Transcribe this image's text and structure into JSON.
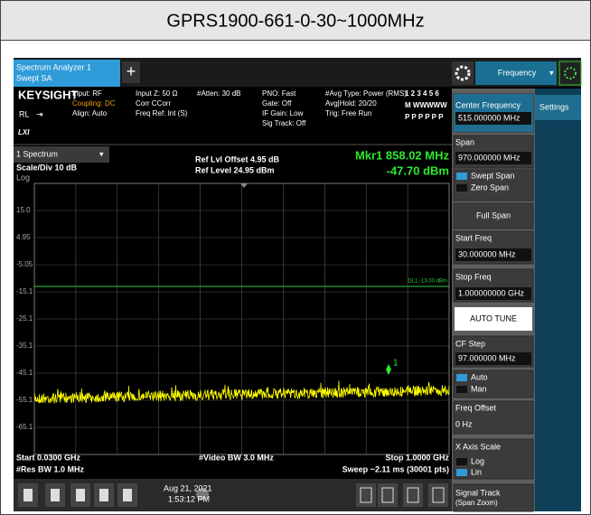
{
  "header": {
    "title": "GPRS1900-661-0-30~1000MHz"
  },
  "toolbar": {
    "tab": [
      "Spectrum Analyzer 1",
      "Swept SA"
    ],
    "menu": "Frequency",
    "side_tab": "Settings"
  },
  "status": {
    "brand": "KEYSIGHT",
    "rl": "RL",
    "lxi": "LXI",
    "columns": [
      [
        "Input: RF",
        "Coupling: DC",
        "Align: Auto"
      ],
      [
        "Input Z: 50 Ω",
        "Corr CCorr",
        "Freq Ref: Int (S)"
      ],
      [
        "#Atten: 30 dB"
      ],
      [
        "PNO: Fast",
        "Gate: Off",
        "IF Gain: Low",
        "Sig Track: Off"
      ],
      [
        "#Avg Type: Power (RMS)",
        "Avg|Hold: 20/20",
        "Trig: Free Run"
      ]
    ],
    "traces": [
      "1 2 3 4 5 6",
      "M WWWWW",
      "P P P P P P"
    ]
  },
  "display": {
    "window": "1 Spectrum",
    "scale": "Scale/Div 10 dB",
    "log": "Log",
    "ref_offset": "Ref Lvl Offset 4.95 dB",
    "ref_level": "Ref Level 24.95 dBm",
    "marker_freq": "Mkr1  858.02 MHz",
    "marker_level": "-47.70 dBm",
    "marker_id": "1",
    "y_labels": [
      "15.0",
      "4.95",
      "-5.05",
      "-15.1",
      "-25.1",
      "-35.1",
      "-45.1",
      "-55.1",
      "-65.1"
    ],
    "display_line": "DL1 -13.00 dBm",
    "start": "Start 0.0300 GHz",
    "vbw": "#Video BW 3.0 MHz",
    "stop": "Stop 1.0000 GHz",
    "rbw": "#Res BW 1.0 MHz",
    "sweep": "Sweep ~2.11 ms (30001 pts)"
  },
  "softkeys": {
    "center_label": "Center Frequency",
    "center_value": "515.000000 MHz",
    "span_label": "Span",
    "span_value": "970.000000 MHz",
    "swept": "Swept Span",
    "zero": "Zero Span",
    "full": "Full Span",
    "start_label": "Start Freq",
    "start_value": "30.000000 MHz",
    "stop_label": "Stop Freq",
    "stop_value": "1.000000000 GHz",
    "auto_tune": "AUTO TUNE",
    "cf_label": "CF Step",
    "cf_value": "97.000000 MHz",
    "auto": "Auto",
    "man": "Man",
    "offset_label": "Freq Offset",
    "offset_value": "0 Hz",
    "xscale_label": "X Axis Scale",
    "log": "Log",
    "lin": "Lin",
    "track_label": "Signal Track",
    "track_sub": "(Span Zoom)"
  },
  "taskbar": {
    "date": "Aug 21, 2021",
    "time": "1:53:12 PM"
  }
}
